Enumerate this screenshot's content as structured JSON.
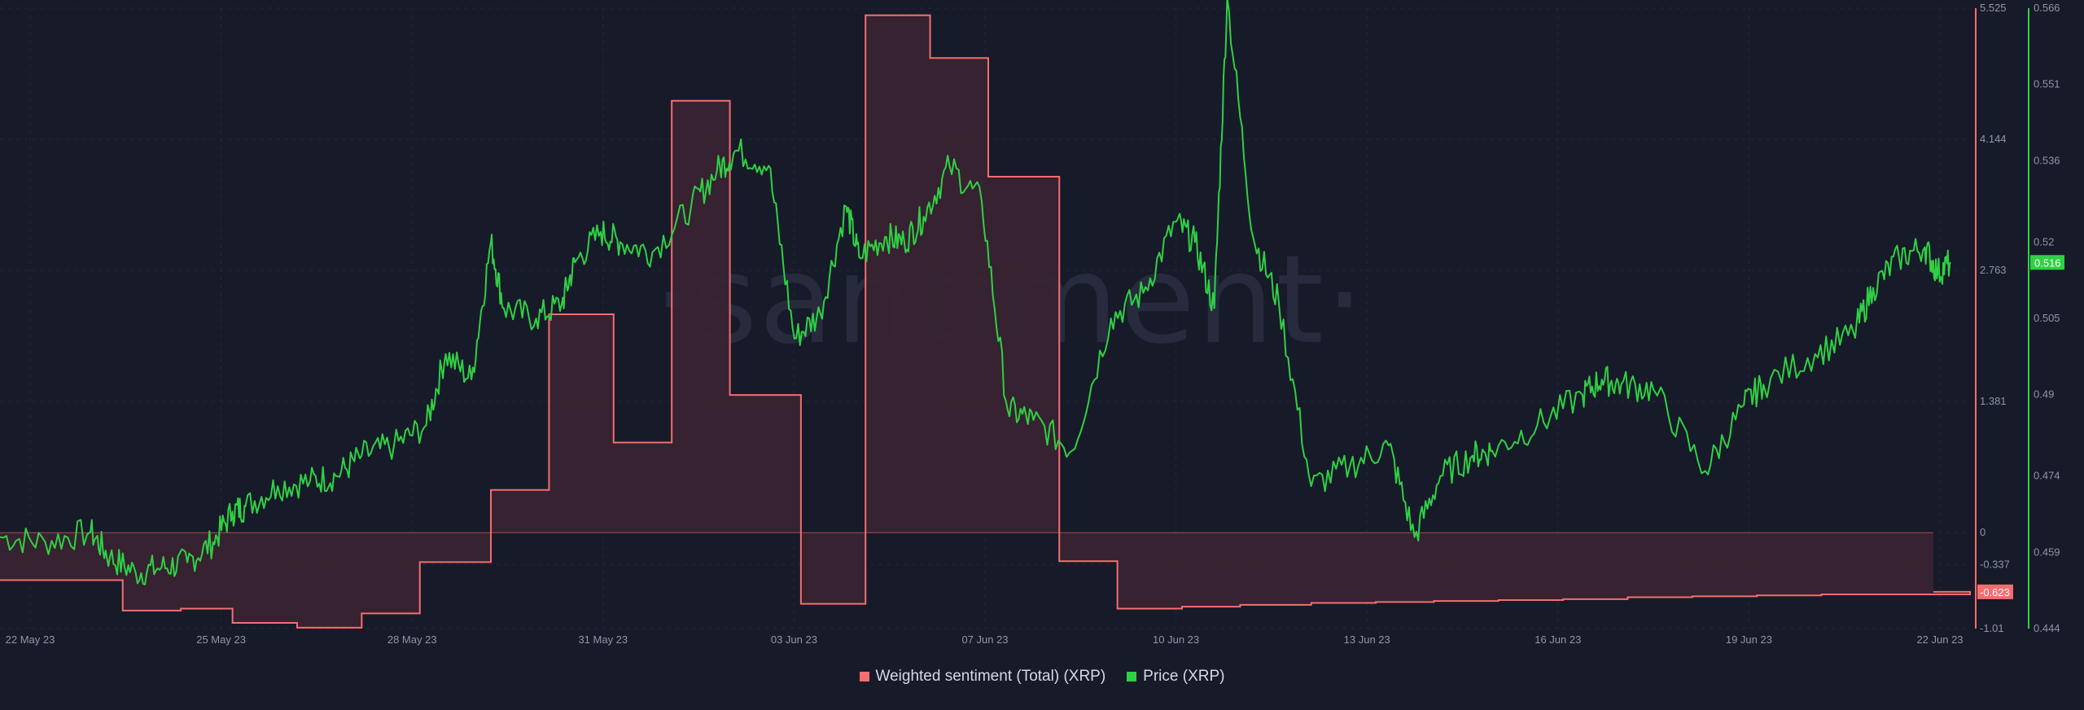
{
  "watermark": "·santiment·",
  "colors": {
    "background": "#171a29",
    "sentiment": "#f46e6e",
    "sentiment_fill": "#3a2431",
    "price": "#2fd044",
    "grid": "#232839"
  },
  "legend": [
    {
      "label": "Weighted sentiment (Total) (XRP)",
      "color": "#f46e6e"
    },
    {
      "label": "Price (XRP)",
      "color": "#2fd044"
    }
  ],
  "chart_data": {
    "type": "line",
    "x_axis": {
      "ticks": [
        "22 May 23",
        "25 May 23",
        "28 May 23",
        "31 May 23",
        "03 Jun 23",
        "07 Jun 23",
        "10 Jun 23",
        "13 Jun 23",
        "16 Jun 23",
        "19 Jun 23",
        "22 Jun 23"
      ]
    },
    "sentiment_axis": {
      "ticks": [
        "5.525",
        "4.144",
        "2.763",
        "1.381",
        "0",
        "-0.337",
        "-1.01"
      ],
      "ylim": [
        -1.01,
        5.525
      ],
      "current_label": "-0.623"
    },
    "price_axis": {
      "ticks": [
        "0.566",
        "0.551",
        "0.536",
        "0.52",
        "0.505",
        "0.49",
        "0.474",
        "0.459",
        "0.444"
      ],
      "ylim": [
        0.444,
        0.566
      ],
      "current_label": "0.516"
    },
    "series": [
      {
        "name": "Weighted sentiment (Total) (XRP)",
        "type": "step-area",
        "x": [
          0,
          1,
          1.9,
          2.8,
          3.6,
          4.6,
          5.6,
          6.5,
          7.6,
          8.5,
          9.5,
          10.4,
          11.3,
          12.4,
          13.4,
          14.4,
          15.3,
          16.4,
          17.3,
          18.3,
          19.2,
          20.3,
          21.3,
          22.2,
          23.2,
          24.2,
          25.2,
          26.2,
          27.2,
          28.2,
          29.3,
          30.5
        ],
        "values": [
          -0.5,
          -0.5,
          -0.82,
          -0.8,
          -0.95,
          -1.0,
          -0.85,
          -0.31,
          0.45,
          2.3,
          0.95,
          4.55,
          1.45,
          -0.75,
          5.45,
          5.0,
          3.75,
          -0.3,
          -0.8,
          -0.78,
          -0.76,
          -0.74,
          -0.73,
          -0.72,
          -0.71,
          -0.7,
          -0.68,
          -0.67,
          -0.66,
          -0.65,
          -0.65,
          -0.623
        ]
      },
      {
        "name": "Price (XRP)",
        "type": "line",
        "x": [
          0,
          0.7,
          1.4,
          1.7,
          2.1,
          2.5,
          2.9,
          3.3,
          3.6,
          3.8,
          4.3,
          4.8,
          5.2,
          5.6,
          6.1,
          6.6,
          6.9,
          7.3,
          7.6,
          7.8,
          8.3,
          8.7,
          8.9,
          9.3,
          9.6,
          10.1,
          10.7,
          11.1,
          11.4,
          11.9,
          12.3,
          12.7,
          13.1,
          13.3,
          13.7,
          14.0,
          14.3,
          14.7,
          15.2,
          15.6,
          16.0,
          16.6,
          17.2,
          17.7,
          18.2,
          18.5,
          18.8,
          19.0,
          19.4,
          19.8,
          20.3,
          20.9,
          21.5,
          21.9,
          22.3,
          22.8,
          23.1,
          23.8,
          24.5,
          24.8,
          25.1,
          25.6,
          26.4,
          27.0,
          27.3,
          28.1,
          28.7,
          29.0,
          29.4,
          29.8,
          30.0,
          30.2
        ],
        "values": [
          0.462,
          0.461,
          0.463,
          0.458,
          0.455,
          0.456,
          0.457,
          0.461,
          0.467,
          0.468,
          0.472,
          0.473,
          0.474,
          0.478,
          0.48,
          0.484,
          0.498,
          0.493,
          0.52,
          0.507,
          0.505,
          0.508,
          0.516,
          0.522,
          0.52,
          0.518,
          0.527,
          0.534,
          0.538,
          0.535,
          0.501,
          0.506,
          0.527,
          0.517,
          0.521,
          0.52,
          0.525,
          0.535,
          0.528,
          0.487,
          0.485,
          0.479,
          0.505,
          0.51,
          0.524,
          0.52,
          0.507,
          0.568,
          0.521,
          0.508,
          0.472,
          0.476,
          0.48,
          0.462,
          0.474,
          0.478,
          0.479,
          0.484,
          0.49,
          0.493,
          0.492,
          0.491,
          0.475,
          0.488,
          0.492,
          0.498,
          0.502,
          0.511,
          0.517,
          0.519,
          0.514,
          0.516
        ]
      }
    ]
  }
}
